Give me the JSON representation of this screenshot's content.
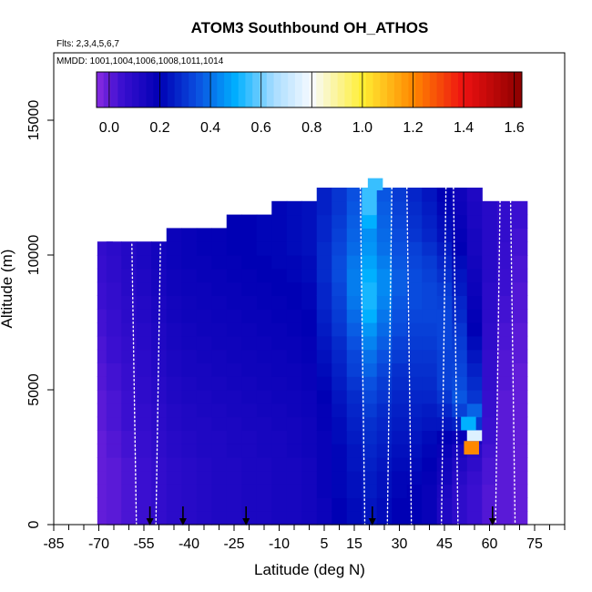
{
  "chart_data": {
    "type": "heatmap",
    "title": "ATOM3 Southbound OH_ATHOS",
    "flights_label": "Flts: 2,3,4,5,6,7",
    "dates_label": "MMDD: 1001,1004,1006,1008,1011,1014",
    "xlabel": "Latitude (deg N)",
    "ylabel": "Altitude (m)",
    "xlim": [
      -85,
      85
    ],
    "ylim": [
      0,
      17500
    ],
    "x_ticks": [
      -85,
      -70,
      -55,
      -40,
      -25,
      -10,
      5,
      15,
      30,
      45,
      60,
      75
    ],
    "x_tick_labels": [
      "-85",
      "-70",
      "-55",
      "-40",
      "-25",
      "-10",
      "5",
      "15",
      "30",
      "45",
      "60",
      "75"
    ],
    "y_ticks": [
      0,
      5000,
      10000,
      15000
    ],
    "y_tick_labels": [
      "0",
      "5000",
      "10000",
      "15000"
    ],
    "colorbar": {
      "min": -0.05,
      "max": 1.63,
      "ticks": [
        0.0,
        0.2,
        0.4,
        0.6,
        0.8,
        1.0,
        1.2,
        1.4,
        1.6
      ],
      "tick_labels": [
        "0.0",
        "0.2",
        "0.4",
        "0.6",
        "0.8",
        "1.0",
        "1.2",
        "1.4",
        "1.6"
      ],
      "stops": [
        {
          "v": -0.05,
          "c": "#8a2be2"
        },
        {
          "v": 0.05,
          "c": "#3a0fd0"
        },
        {
          "v": 0.2,
          "c": "#0000b4"
        },
        {
          "v": 0.35,
          "c": "#0a50e0"
        },
        {
          "v": 0.5,
          "c": "#00b0ff"
        },
        {
          "v": 0.65,
          "c": "#a8dcff"
        },
        {
          "v": 0.8,
          "c": "#f8fbff"
        },
        {
          "v": 1.0,
          "c": "#ffee33"
        },
        {
          "v": 1.2,
          "c": "#ff8800"
        },
        {
          "v": 1.4,
          "c": "#ee1111"
        },
        {
          "v": 1.63,
          "c": "#8b0000"
        }
      ]
    },
    "lat_columns": [
      -68,
      -65,
      -60,
      -55,
      -50,
      -45,
      -40,
      -35,
      -30,
      -25,
      -20,
      -15,
      -10,
      -5,
      0,
      5,
      10,
      15,
      20,
      25,
      30,
      35,
      40,
      45,
      50,
      55,
      60,
      65,
      70
    ],
    "column_tops_m": [
      10400,
      10400,
      10400,
      10400,
      10400,
      10900,
      10900,
      10900,
      10900,
      11500,
      11500,
      11500,
      12100,
      12100,
      12100,
      12500,
      12500,
      12500,
      12500,
      12500,
      12500,
      12500,
      12500,
      12500,
      12500,
      12500,
      12000,
      12000,
      12000
    ],
    "altitude_bins_m": [
      250,
      750,
      1250,
      1750,
      2250,
      2750,
      3250,
      3750,
      4250,
      4750,
      5250,
      5750,
      6250,
      6750,
      7250,
      7750,
      8250,
      8750,
      9250,
      9750,
      10250,
      10750,
      11250,
      11750,
      12250
    ],
    "oh_values": [
      [
        0.0,
        0.01,
        0.03,
        0.05,
        0.07,
        0.09,
        0.1,
        0.11,
        0.12,
        0.12,
        0.13,
        0.13,
        0.14,
        0.14,
        0.15,
        0.17,
        0.2,
        0.22,
        0.24,
        0.22,
        0.2,
        0.2,
        0.18,
        0.12,
        0.08,
        0.05,
        0.02,
        0.01,
        0.0
      ],
      [
        0.0,
        0.01,
        0.03,
        0.05,
        0.07,
        0.09,
        0.1,
        0.11,
        0.12,
        0.12,
        0.13,
        0.13,
        0.14,
        0.14,
        0.15,
        0.17,
        0.2,
        0.22,
        0.24,
        0.22,
        0.2,
        0.2,
        0.18,
        0.12,
        0.08,
        0.05,
        0.02,
        0.01,
        0.0
      ],
      [
        0.0,
        0.01,
        0.03,
        0.05,
        0.07,
        0.09,
        0.1,
        0.11,
        0.12,
        0.12,
        0.13,
        0.13,
        0.14,
        0.14,
        0.15,
        0.18,
        0.21,
        0.23,
        0.25,
        0.23,
        0.21,
        0.2,
        0.18,
        0.13,
        0.08,
        0.05,
        0.02,
        0.01,
        0.0
      ],
      [
        0.0,
        0.01,
        0.03,
        0.05,
        0.07,
        0.09,
        0.1,
        0.11,
        0.12,
        0.12,
        0.13,
        0.13,
        0.14,
        0.14,
        0.15,
        0.18,
        0.21,
        0.23,
        0.25,
        0.23,
        0.21,
        0.21,
        0.19,
        0.15,
        0.1,
        0.06,
        0.03,
        0.01,
        0.0
      ],
      [
        0.0,
        0.01,
        0.03,
        0.05,
        0.07,
        0.09,
        0.1,
        0.11,
        0.12,
        0.12,
        0.13,
        0.13,
        0.14,
        0.14,
        0.15,
        0.18,
        0.21,
        0.24,
        0.26,
        0.24,
        0.22,
        0.22,
        0.2,
        0.16,
        0.12,
        0.08,
        0.03,
        0.01,
        0.0
      ],
      [
        0.0,
        0.02,
        0.04,
        0.06,
        0.08,
        0.1,
        0.11,
        0.12,
        0.12,
        0.13,
        0.13,
        0.14,
        0.14,
        0.15,
        0.16,
        0.18,
        0.21,
        0.24,
        0.27,
        0.25,
        0.23,
        0.23,
        0.21,
        0.18,
        0.14,
        0.1,
        0.04,
        0.01,
        0.0
      ],
      [
        0.0,
        0.02,
        0.04,
        0.06,
        0.08,
        0.1,
        0.11,
        0.12,
        0.12,
        0.13,
        0.13,
        0.14,
        0.14,
        0.15,
        0.16,
        0.18,
        0.22,
        0.25,
        0.28,
        0.26,
        0.24,
        0.24,
        0.22,
        0.2,
        0.18,
        0.14,
        0.05,
        0.01,
        0.0
      ],
      [
        0.01,
        0.03,
        0.05,
        0.07,
        0.09,
        0.11,
        0.12,
        0.12,
        0.13,
        0.13,
        0.14,
        0.14,
        0.15,
        0.15,
        0.16,
        0.19,
        0.22,
        0.26,
        0.29,
        0.27,
        0.25,
        0.25,
        0.24,
        0.24,
        0.26,
        0.3,
        0.05,
        0.01,
        0.0
      ],
      [
        0.01,
        0.03,
        0.05,
        0.07,
        0.09,
        0.11,
        0.12,
        0.13,
        0.13,
        0.14,
        0.14,
        0.15,
        0.15,
        0.16,
        0.17,
        0.19,
        0.23,
        0.27,
        0.31,
        0.28,
        0.26,
        0.26,
        0.25,
        0.27,
        0.32,
        0.38,
        0.06,
        0.01,
        0.0
      ],
      [
        0.01,
        0.03,
        0.05,
        0.08,
        0.1,
        0.12,
        0.13,
        0.13,
        0.14,
        0.14,
        0.15,
        0.15,
        0.16,
        0.16,
        0.17,
        0.2,
        0.24,
        0.28,
        0.33,
        0.3,
        0.27,
        0.27,
        0.27,
        0.3,
        0.36,
        0.3,
        0.06,
        0.01,
        0.0
      ],
      [
        0.02,
        0.04,
        0.06,
        0.08,
        0.1,
        0.12,
        0.13,
        0.14,
        0.14,
        0.15,
        0.15,
        0.16,
        0.16,
        0.17,
        0.18,
        0.21,
        0.25,
        0.3,
        0.35,
        0.31,
        0.28,
        0.28,
        0.28,
        0.32,
        0.34,
        0.28,
        0.07,
        0.02,
        0.0
      ],
      [
        0.02,
        0.04,
        0.06,
        0.09,
        0.11,
        0.13,
        0.14,
        0.14,
        0.15,
        0.15,
        0.16,
        0.16,
        0.17,
        0.17,
        0.18,
        0.22,
        0.26,
        0.32,
        0.38,
        0.33,
        0.29,
        0.29,
        0.29,
        0.32,
        0.33,
        0.26,
        0.07,
        0.02,
        0.0
      ],
      [
        0.03,
        0.05,
        0.07,
        0.09,
        0.11,
        0.13,
        0.14,
        0.15,
        0.15,
        0.16,
        0.16,
        0.17,
        0.17,
        0.18,
        0.19,
        0.23,
        0.27,
        0.33,
        0.4,
        0.35,
        0.31,
        0.3,
        0.3,
        0.32,
        0.32,
        0.24,
        0.07,
        0.02,
        0.01
      ],
      [
        0.03,
        0.05,
        0.07,
        0.1,
        0.12,
        0.14,
        0.15,
        0.15,
        0.16,
        0.16,
        0.17,
        0.17,
        0.18,
        0.18,
        0.19,
        0.24,
        0.28,
        0.35,
        0.43,
        0.37,
        0.32,
        0.31,
        0.31,
        0.33,
        0.31,
        0.22,
        0.08,
        0.03,
        0.01
      ],
      [
        0.04,
        0.06,
        0.08,
        0.1,
        0.12,
        0.14,
        0.15,
        0.16,
        0.16,
        0.17,
        0.17,
        0.18,
        0.18,
        0.19,
        0.2,
        0.25,
        0.3,
        0.37,
        0.46,
        0.39,
        0.34,
        0.32,
        0.32,
        0.33,
        0.3,
        0.2,
        0.08,
        0.03,
        0.01
      ],
      [
        0.04,
        0.06,
        0.09,
        0.11,
        0.13,
        0.15,
        0.16,
        0.16,
        0.17,
        0.17,
        0.18,
        0.18,
        0.19,
        0.19,
        0.2,
        0.26,
        0.31,
        0.39,
        0.5,
        0.41,
        0.35,
        0.33,
        0.33,
        0.33,
        0.28,
        0.19,
        0.09,
        0.04,
        0.02
      ],
      [
        0.05,
        0.07,
        0.09,
        0.11,
        0.13,
        0.15,
        0.16,
        0.17,
        0.17,
        0.18,
        0.18,
        0.19,
        0.19,
        0.2,
        0.21,
        0.27,
        0.32,
        0.41,
        0.52,
        0.43,
        0.36,
        0.34,
        0.33,
        0.32,
        0.27,
        0.18,
        0.09,
        0.04,
        0.02
      ],
      [
        0.05,
        0.07,
        0.1,
        0.12,
        0.14,
        0.16,
        0.17,
        0.17,
        0.18,
        0.18,
        0.19,
        0.19,
        0.2,
        0.2,
        0.21,
        0.27,
        0.33,
        0.42,
        0.52,
        0.44,
        0.37,
        0.34,
        0.33,
        0.31,
        0.25,
        0.17,
        0.09,
        0.05,
        0.02
      ],
      [
        0.06,
        0.08,
        0.1,
        0.12,
        0.14,
        0.16,
        0.17,
        0.18,
        0.18,
        0.19,
        0.19,
        0.2,
        0.2,
        0.21,
        0.22,
        0.28,
        0.34,
        0.42,
        0.5,
        0.44,
        0.37,
        0.34,
        0.32,
        0.29,
        0.24,
        0.16,
        0.1,
        0.05,
        0.03
      ],
      [
        0.06,
        0.08,
        0.11,
        0.13,
        0.15,
        0.17,
        0.18,
        0.18,
        0.19,
        0.19,
        0.2,
        0.2,
        0.21,
        0.21,
        0.22,
        0.28,
        0.34,
        0.41,
        0.48,
        0.42,
        0.36,
        0.33,
        0.31,
        0.27,
        0.22,
        0.15,
        0.1,
        0.06,
        0.03
      ],
      [
        0.07,
        0.09,
        0.11,
        0.13,
        0.15,
        0.17,
        0.18,
        0.19,
        0.19,
        0.2,
        0.2,
        0.21,
        0.21,
        0.22,
        0.23,
        0.28,
        0.33,
        0.39,
        0.46,
        0.4,
        0.35,
        0.32,
        0.29,
        0.25,
        0.2,
        0.14,
        0.1,
        0.06,
        0.04
      ],
      [
        0.07,
        0.09,
        0.11,
        0.13,
        0.15,
        0.17,
        0.18,
        0.19,
        0.19,
        0.2,
        0.2,
        0.21,
        0.21,
        0.22,
        0.23,
        0.27,
        0.32,
        0.38,
        0.45,
        0.39,
        0.34,
        0.3,
        0.27,
        0.23,
        0.19,
        0.14,
        0.1,
        0.07,
        0.04
      ],
      [
        0.07,
        0.09,
        0.11,
        0.13,
        0.15,
        0.17,
        0.18,
        0.19,
        0.19,
        0.2,
        0.2,
        0.21,
        0.21,
        0.22,
        0.23,
        0.27,
        0.31,
        0.37,
        0.5,
        0.38,
        0.33,
        0.29,
        0.26,
        0.22,
        0.18,
        0.13,
        0.1,
        0.07,
        0.05
      ],
      [
        0.07,
        0.09,
        0.11,
        0.13,
        0.15,
        0.17,
        0.18,
        0.19,
        0.19,
        0.2,
        0.2,
        0.21,
        0.21,
        0.22,
        0.23,
        0.26,
        0.3,
        0.36,
        0.55,
        0.37,
        0.32,
        0.28,
        0.25,
        0.21,
        0.17,
        0.13,
        0.1,
        0.07,
        0.05
      ],
      [
        0.07,
        0.09,
        0.11,
        0.13,
        0.15,
        0.17,
        0.18,
        0.19,
        0.19,
        0.2,
        0.2,
        0.21,
        0.21,
        0.22,
        0.23,
        0.26,
        0.3,
        0.35,
        0.55,
        0.36,
        0.31,
        0.27,
        0.24,
        0.2,
        0.16,
        0.12,
        0.1,
        0.07,
        0.05
      ]
    ],
    "hotspots": [
      {
        "lat": 54,
        "alt_min_m": 2600,
        "alt_max_m": 3100,
        "value": 1.2
      },
      {
        "lat": 55,
        "alt_min_m": 3100,
        "alt_max_m": 3500,
        "value": 0.75
      },
      {
        "lat": 53,
        "alt_min_m": 3500,
        "alt_max_m": 4000,
        "value": 0.5
      },
      {
        "lat": 22,
        "alt_min_m": 12400,
        "alt_max_m": 12850,
        "value": 0.55
      }
    ],
    "profile_latitudes": [
      -57.5,
      -51,
      18.5,
      26,
      34,
      44,
      49.5,
      62,
      68.5
    ],
    "surface_arrows_lat": [
      -53,
      -42,
      -21,
      21,
      61
    ]
  }
}
